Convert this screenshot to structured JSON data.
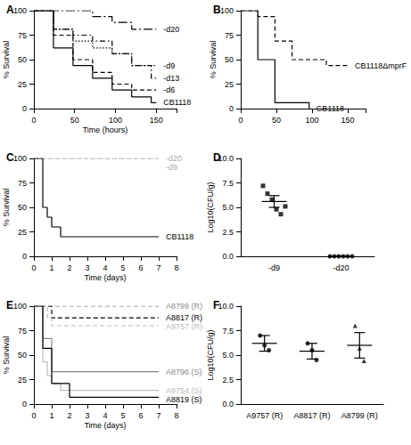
{
  "chart_data": [
    {
      "type": "line",
      "title": "A",
      "x_label": "Time (hours)",
      "y_label": "% Survival",
      "xlim": [
        0,
        175
      ],
      "xticks": [
        0,
        50,
        100,
        150
      ],
      "ylim": [
        0,
        100
      ],
      "yticks": [
        0,
        25,
        50,
        75,
        100
      ],
      "grid": false,
      "series": [
        {
          "name": "-d20",
          "color": "#000000",
          "line_style": "longdashdot",
          "x": [
            0,
            48,
            72,
            96,
            120,
            150
          ],
          "values": [
            100,
            100,
            94,
            88,
            81,
            81
          ]
        },
        {
          "name": "-d9",
          "color": "#000000",
          "line_style": "dotted",
          "x": [
            0,
            24,
            48,
            72,
            96,
            120,
            150
          ],
          "values": [
            100,
            81,
            69,
            62,
            56,
            44,
            44
          ]
        },
        {
          "name": "-d13",
          "color": "#000000",
          "line_style": "dashdot",
          "x": [
            0,
            24,
            48,
            72,
            96,
            120,
            144,
            150
          ],
          "values": [
            100,
            81,
            75,
            69,
            56,
            44,
            31,
            31
          ]
        },
        {
          "name": "-d6",
          "color": "#000000",
          "line_style": "dashed",
          "x": [
            0,
            24,
            48,
            72,
            96,
            120,
            150
          ],
          "values": [
            100,
            75,
            50,
            37,
            25,
            19,
            19
          ]
        },
        {
          "name": "CB1118",
          "color": "#000000",
          "line_style": "solid",
          "x": [
            0,
            24,
            48,
            72,
            96,
            120,
            144,
            150
          ],
          "values": [
            100,
            62,
            44,
            31,
            19,
            12,
            6,
            6
          ]
        }
      ]
    },
    {
      "type": "line",
      "title": "B",
      "y_label": "% Survival",
      "xlim": [
        0,
        175
      ],
      "xticks": [
        0,
        50,
        100,
        150
      ],
      "ylim": [
        0,
        100
      ],
      "yticks": [
        0,
        25,
        50,
        75,
        100
      ],
      "grid": false,
      "series": [
        {
          "name": "CB1118ΔmprF",
          "color": "#000000",
          "line_style": "dashed",
          "x": [
            0,
            24,
            48,
            72,
            120,
            150
          ],
          "values": [
            100,
            94,
            69,
            50,
            44,
            44
          ]
        },
        {
          "name": "CB1118",
          "color": "#000000",
          "line_style": "solid",
          "x": [
            0,
            24,
            48,
            96
          ],
          "values": [
            100,
            50,
            6,
            0
          ]
        }
      ]
    },
    {
      "type": "line",
      "title": "C",
      "x_label": "Time (days)",
      "y_label": "% Survival",
      "xlim": [
        0,
        8
      ],
      "xticks": [
        0,
        1,
        2,
        3,
        4,
        5,
        6,
        7,
        8
      ],
      "ylim": [
        0,
        100
      ],
      "yticks": [
        0,
        25,
        50,
        75,
        100
      ],
      "grid": false,
      "series": [
        {
          "name": "-d20",
          "color": "#aaaaaa",
          "line_style": "dotted",
          "x": [
            0,
            7
          ],
          "values": [
            100,
            100
          ]
        },
        {
          "name": "-d9",
          "color": "#aaaaaa",
          "line_style": "dashed",
          "x": [
            0,
            7
          ],
          "values": [
            100,
            100
          ]
        },
        {
          "name": "CB1118",
          "color": "#000000",
          "line_style": "solid",
          "x": [
            0,
            0.5,
            0.75,
            1,
            1.5,
            7
          ],
          "values": [
            100,
            50,
            40,
            30,
            20,
            20
          ]
        }
      ]
    },
    {
      "type": "scatter",
      "title": "D",
      "y_label": "Log10(CFU/g)",
      "categories": [
        "-d9",
        "-d20"
      ],
      "ylim": [
        0,
        10
      ],
      "yticks": [
        {
          "value": 0,
          "label": "0.0"
        },
        {
          "value": 2.5,
          "label": "2.5"
        },
        {
          "value": 5,
          "label": "5.0"
        },
        {
          "value": 7.5,
          "label": "7.5"
        },
        {
          "value": 10,
          "label": "10.0"
        }
      ],
      "grid": false,
      "groups": [
        {
          "category": "-d9",
          "marker": "square",
          "values": [
            7.2,
            6.4,
            5.8,
            4.8,
            4.3,
            5.1
          ],
          "mean": 5.6,
          "sem": 0.6
        },
        {
          "category": "-d20",
          "marker": "circle",
          "values": [
            0,
            0,
            0,
            0,
            0,
            0
          ],
          "mean": 0,
          "sem": 0
        }
      ]
    },
    {
      "type": "line",
      "title": "E",
      "x_label": "Time (days)",
      "y_label": "% Survival",
      "xlim": [
        0,
        8
      ],
      "xticks": [
        0,
        1,
        2,
        3,
        4,
        5,
        6,
        7,
        8
      ],
      "ylim": [
        0,
        100
      ],
      "yticks": [
        0,
        25,
        50,
        75,
        100
      ],
      "grid": false,
      "series": [
        {
          "name": "A8799 (R)",
          "color": "#888888",
          "line_style": "dashed",
          "x": [
            0,
            7
          ],
          "values": [
            100,
            100
          ]
        },
        {
          "name": "A8817 (R)",
          "color": "#000000",
          "line_style": "dashed",
          "x": [
            0,
            1,
            7
          ],
          "values": [
            100,
            88,
            88
          ]
        },
        {
          "name": "A9757 (R)",
          "color": "#bbbbbb",
          "line_style": "dashed",
          "x": [
            0,
            0.75,
            1,
            7
          ],
          "values": [
            100,
            88,
            80,
            80
          ]
        },
        {
          "name": "A8796 (S)",
          "color": "#888888",
          "line_style": "solid",
          "x": [
            0,
            0.5,
            1,
            7
          ],
          "values": [
            100,
            67,
            33,
            33
          ]
        },
        {
          "name": "A9754 (S)",
          "color": "#bbbbbb",
          "line_style": "solid",
          "x": [
            0,
            0.5,
            0.75,
            1,
            1.5,
            7
          ],
          "values": [
            100,
            43,
            29,
            21,
            14,
            14
          ]
        },
        {
          "name": "A8819 (S)",
          "color": "#000000",
          "line_style": "solid",
          "x": [
            0,
            0.5,
            1,
            2,
            7
          ],
          "values": [
            100,
            57,
            21,
            7,
            7
          ]
        }
      ]
    },
    {
      "type": "scatter",
      "title": "F",
      "y_label": "Log10(CFU/g)",
      "categories": [
        "A9757 (R)",
        "A8817 (R)",
        "A8799 (R)"
      ],
      "ylim": [
        0,
        10
      ],
      "yticks": [
        {
          "value": 0,
          "label": "0.0"
        },
        {
          "value": 2.5,
          "label": "2.5"
        },
        {
          "value": 5,
          "label": "5.0"
        },
        {
          "value": 7.5,
          "label": "7.5"
        },
        {
          "value": 10,
          "label": "10.0"
        }
      ],
      "grid": false,
      "groups": [
        {
          "category": "A9757 (R)",
          "marker": "circle",
          "values": [
            7.0,
            6.0,
            5.5
          ],
          "mean": 6.2,
          "sem": 0.8
        },
        {
          "category": "A8817 (R)",
          "marker": "circle",
          "values": [
            6.2,
            5.5,
            4.5
          ],
          "mean": 5.4,
          "sem": 0.8
        },
        {
          "category": "A8799 (R)",
          "marker": "triangle",
          "values": [
            8.0,
            5.7,
            4.4
          ],
          "mean": 6.0,
          "sem": 1.3
        }
      ]
    }
  ]
}
